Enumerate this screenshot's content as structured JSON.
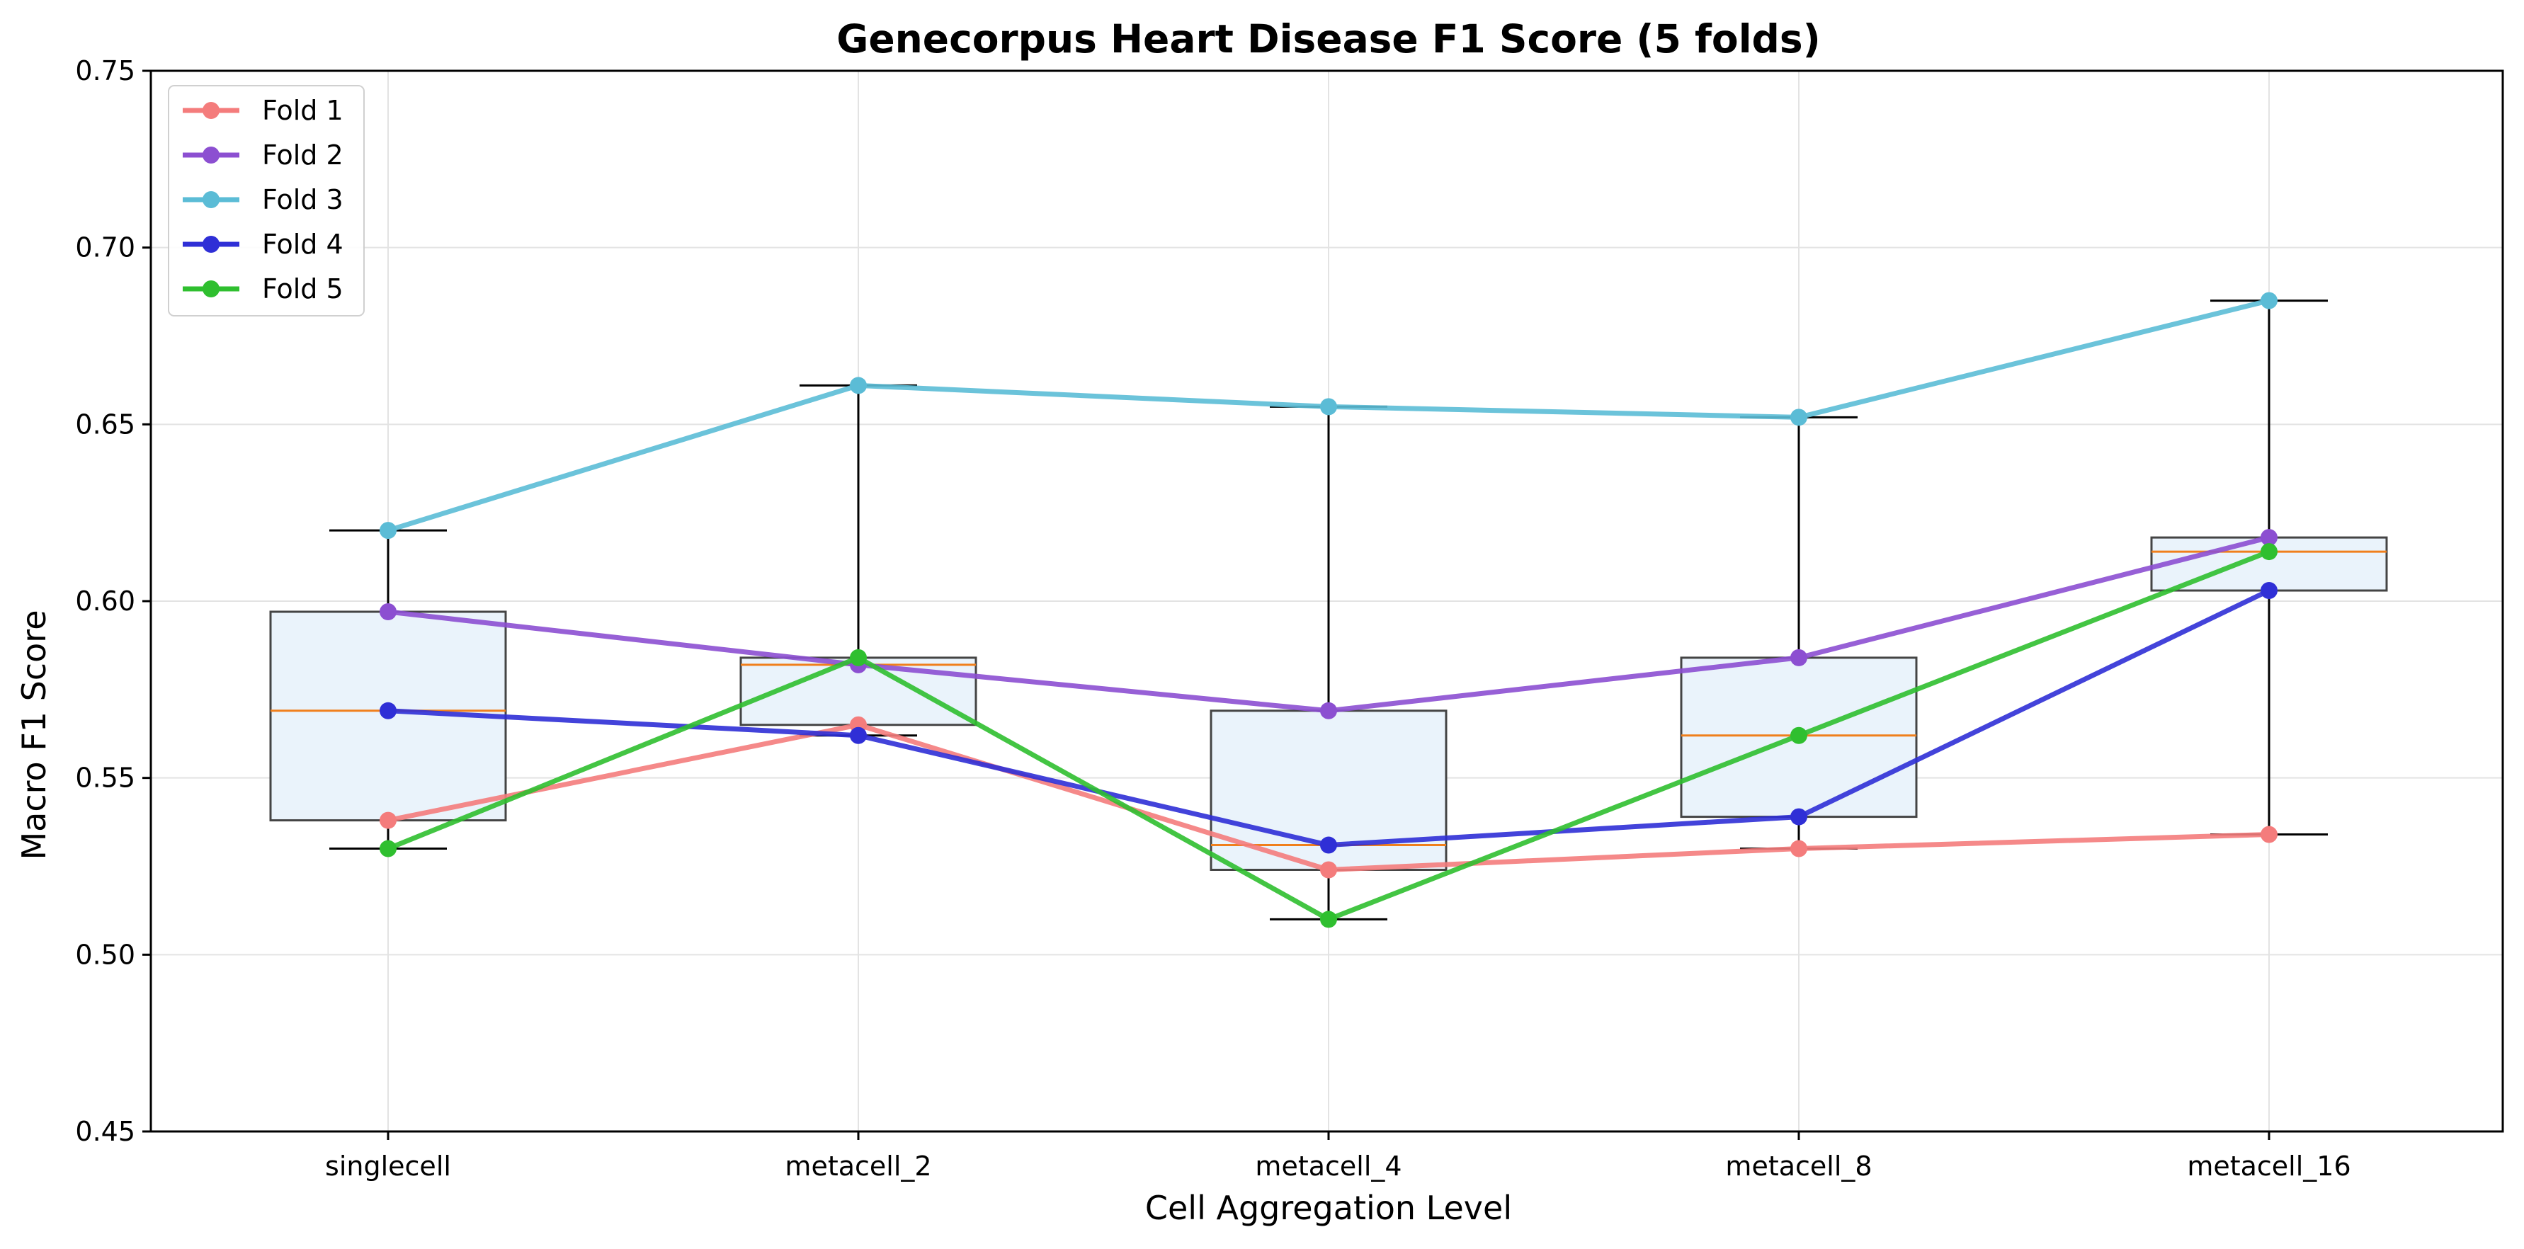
{
  "chart_data": {
    "type": "line",
    "title": "Genecorpus Heart Disease F1 Score (5 folds)",
    "xlabel": "Cell Aggregation Level",
    "ylabel": "Macro F1 Score",
    "categories": [
      "singlecell",
      "metacell_2",
      "metacell_4",
      "metacell_8",
      "metacell_16"
    ],
    "ylim": [
      0.45,
      0.75
    ],
    "yticks": [
      "0.45",
      "0.50",
      "0.55",
      "0.60",
      "0.65",
      "0.70",
      "0.75"
    ],
    "grid": true,
    "legend_position": "top-left",
    "series": [
      {
        "name": "Fold 1",
        "color": "#f47c7c",
        "values": [
          0.538,
          0.565,
          0.524,
          0.53,
          0.534
        ]
      },
      {
        "name": "Fold 2",
        "color": "#8c4fd1",
        "values": [
          0.597,
          0.582,
          0.569,
          0.584,
          0.618
        ]
      },
      {
        "name": "Fold 3",
        "color": "#5bbcd6",
        "values": [
          0.62,
          0.661,
          0.655,
          0.652,
          0.685
        ]
      },
      {
        "name": "Fold 4",
        "color": "#2f2fd6",
        "values": [
          0.569,
          0.562,
          0.531,
          0.539,
          0.603
        ]
      },
      {
        "name": "Fold 5",
        "color": "#2fbf2f",
        "values": [
          0.53,
          0.584,
          0.51,
          0.562,
          0.614
        ]
      }
    ],
    "boxplots": [
      {
        "category": "singlecell",
        "min": 0.53,
        "q1": 0.538,
        "median": 0.569,
        "q3": 0.597,
        "max": 0.62
      },
      {
        "category": "metacell_2",
        "min": 0.562,
        "q1": 0.565,
        "median": 0.582,
        "q3": 0.584,
        "max": 0.661
      },
      {
        "category": "metacell_4",
        "min": 0.51,
        "q1": 0.524,
        "median": 0.531,
        "q3": 0.569,
        "max": 0.655
      },
      {
        "category": "metacell_8",
        "min": 0.53,
        "q1": 0.539,
        "median": 0.562,
        "q3": 0.584,
        "max": 0.652
      },
      {
        "category": "metacell_16",
        "min": 0.534,
        "q1": 0.603,
        "median": 0.614,
        "q3": 0.618,
        "max": 0.685
      }
    ],
    "box_fill_color": "#eaf3fb",
    "box_edge_color": "#444444",
    "median_color": "#f07f1c"
  }
}
